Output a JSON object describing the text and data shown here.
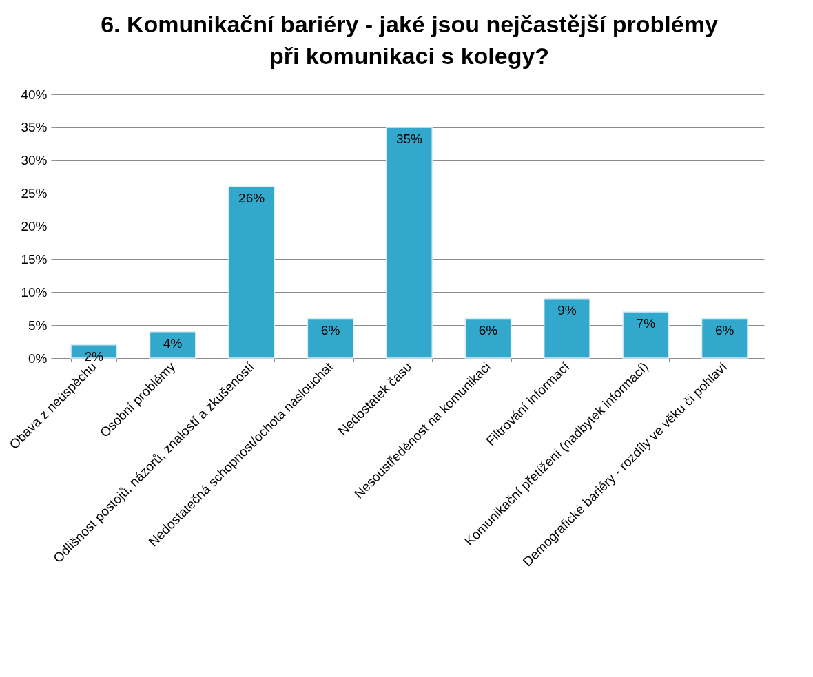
{
  "chart_data": {
    "type": "bar",
    "title": "6. Komunikační bariéry - jaké jsou nejčastější problémy při komunikaci s kolegy?",
    "categories": [
      "Obava z neúspěchu",
      "Osobní problémy",
      "Odlišnost postojů, názorů, znalostí a zkušeností",
      "Nedostatečná schopnost/ochota naslouchat",
      "Nedostatek času",
      "Nesoustředěnost na komunikaci",
      "Filtrování informací",
      "Komunikační přetížení (nadbytek informací)",
      "Demografické bariéry - rozdíly ve věku či pohlaví"
    ],
    "values": [
      2,
      4,
      26,
      6,
      35,
      6,
      9,
      7,
      6
    ],
    "value_labels": [
      "2%",
      "4%",
      "26%",
      "6%",
      "35%",
      "6%",
      "9%",
      "7%",
      "6%"
    ],
    "color": "#31a8cc",
    "ylim": [
      0,
      40
    ],
    "yticks": [
      {
        "value": 0,
        "label": "0%"
      },
      {
        "value": 5,
        "label": "5%"
      },
      {
        "value": 10,
        "label": "10%"
      },
      {
        "value": 15,
        "label": "15%"
      },
      {
        "value": 20,
        "label": "20%"
      },
      {
        "value": 25,
        "label": "25%"
      },
      {
        "value": 30,
        "label": "30%"
      },
      {
        "value": 35,
        "label": "35%"
      },
      {
        "value": 40,
        "label": "40%"
      }
    ],
    "grid": "y"
  }
}
